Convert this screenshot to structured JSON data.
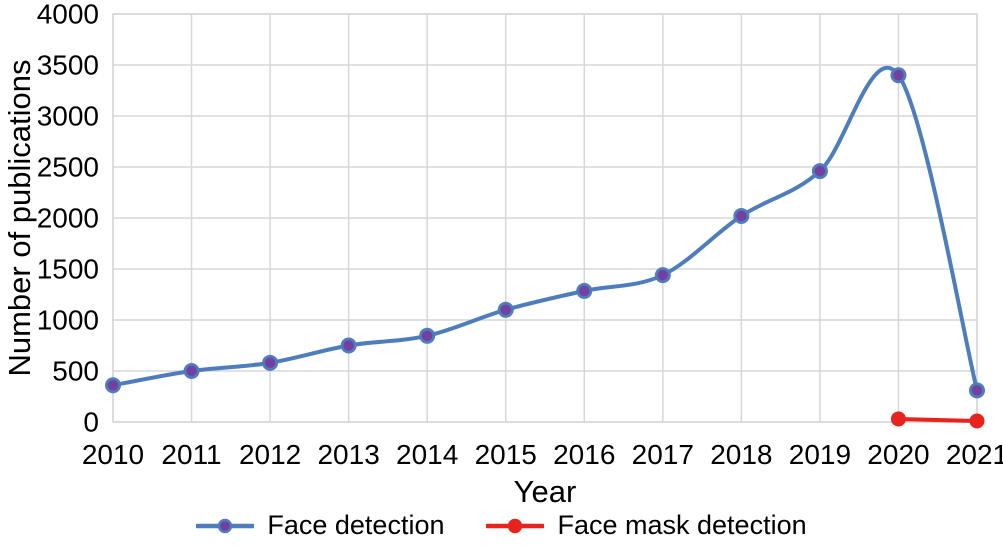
{
  "chart_data": {
    "type": "line",
    "title": "",
    "xlabel": "Year",
    "ylabel": "Number of publications",
    "categories": [
      "2010",
      "2011",
      "2012",
      "2013",
      "2014",
      "2015",
      "2016",
      "2017",
      "2018",
      "2019",
      "2020",
      "2021"
    ],
    "series": [
      {
        "name": "Face detection",
        "line_color": "#4E7DBE",
        "marker_color": "#7340A0",
        "marker": "circle-ringed",
        "smooth": true,
        "values": [
          360,
          500,
          580,
          750,
          845,
          1100,
          1285,
          1440,
          2020,
          2460,
          3400,
          310
        ]
      },
      {
        "name": "Face mask detection",
        "line_color": "#E8231E",
        "marker_color": "#E8231E",
        "marker": "circle",
        "smooth": false,
        "values": [
          null,
          null,
          null,
          null,
          null,
          null,
          null,
          null,
          null,
          null,
          30,
          10
        ]
      }
    ],
    "ylim": [
      0,
      4000
    ],
    "yticks": [
      0,
      500,
      1000,
      1500,
      2000,
      2500,
      3000,
      3500,
      4000
    ],
    "grid": true,
    "gridline_color": "#D7D7D7",
    "text_color": "#000000",
    "background_color": "#ffffff",
    "legend_position": "bottom"
  }
}
